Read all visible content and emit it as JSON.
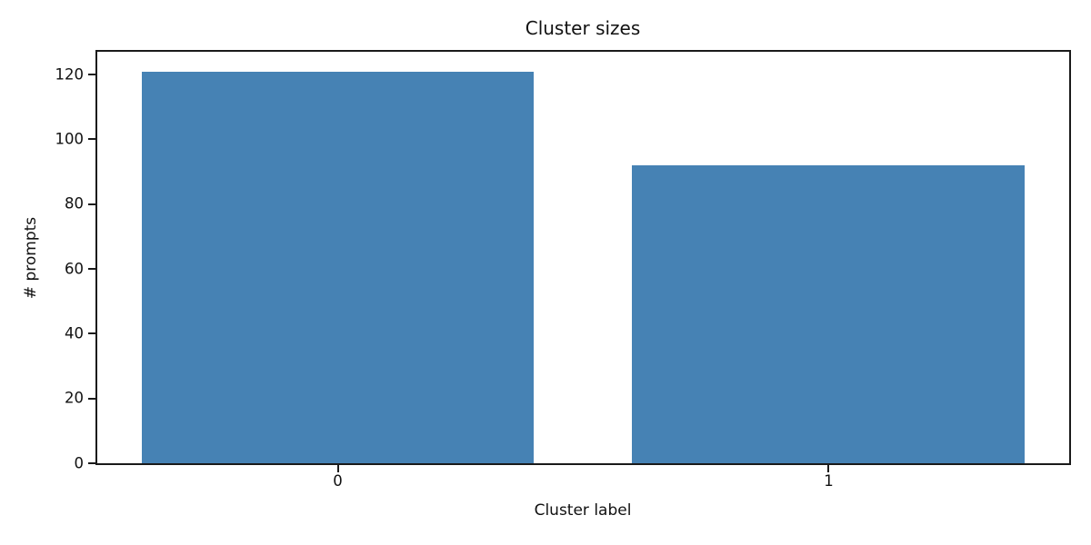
{
  "chart_data": {
    "type": "bar",
    "title": "Cluster sizes",
    "xlabel": "Cluster label",
    "ylabel": "# prompts",
    "categories": [
      "0",
      "1"
    ],
    "values": [
      121,
      92
    ],
    "yticks": [
      0,
      20,
      40,
      60,
      80,
      100,
      120
    ],
    "ylim": [
      0,
      127.05
    ],
    "xlim": [
      -0.49,
      1.49
    ],
    "bar_width": 0.8,
    "bar_color": "#4682b4",
    "spine_color": "#1a1a1a",
    "background_color": "#ffffff",
    "grid": false,
    "legend": null
  }
}
